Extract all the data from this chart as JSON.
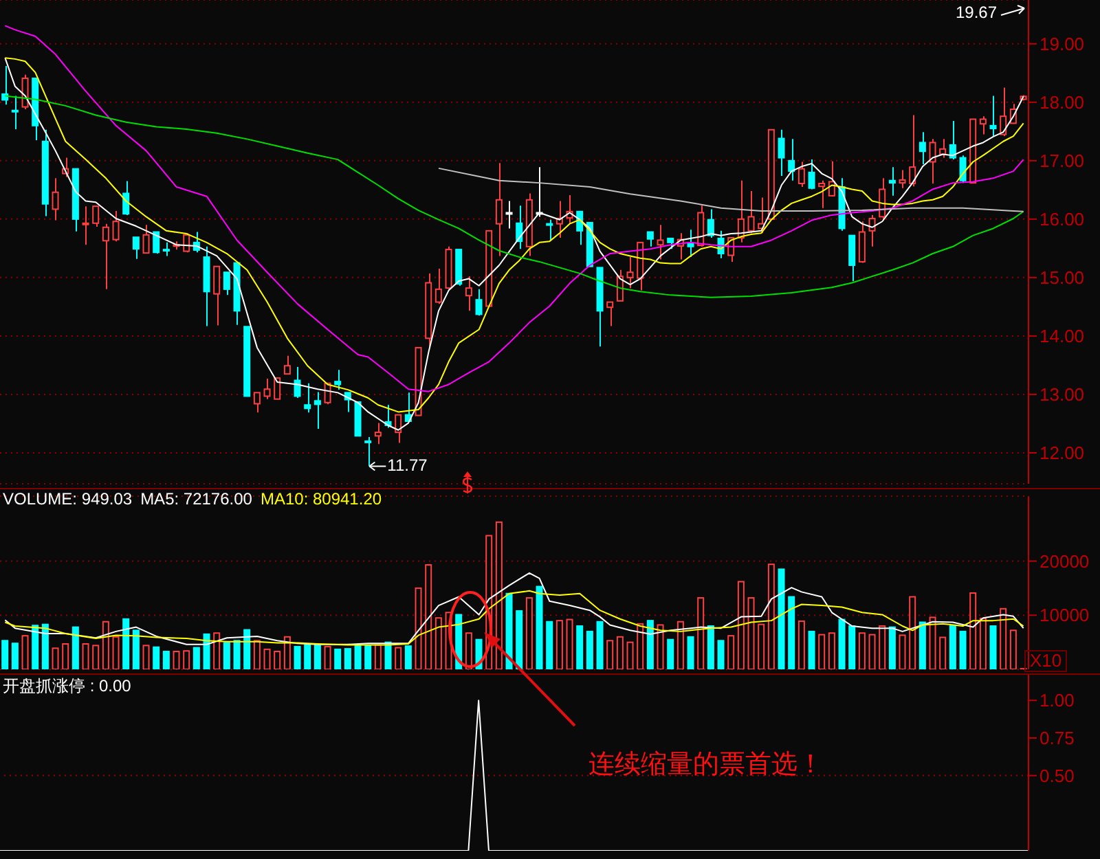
{
  "chart_data": [
    {
      "type": "candlestick",
      "categories": [
        null,
        null,
        null,
        null,
        null,
        null,
        null,
        null,
        null,
        null,
        null,
        null,
        null,
        null,
        null,
        null,
        null,
        null,
        null,
        null,
        null,
        null,
        null,
        null,
        null,
        null,
        null,
        null,
        null,
        null,
        null,
        null,
        null,
        null,
        null,
        null,
        null,
        null,
        null,
        null,
        null,
        null,
        null,
        null,
        null,
        null,
        null,
        null,
        null,
        null,
        null,
        null,
        null,
        null,
        null,
        null,
        null,
        null,
        null,
        null,
        null,
        null,
        null,
        null,
        null,
        null,
        null,
        null,
        null,
        null,
        null,
        null,
        null,
        null,
        null,
        null,
        null,
        null,
        null,
        null,
        null,
        null,
        null,
        null,
        null,
        null,
        null,
        null,
        null,
        null,
        null,
        null,
        null,
        null,
        null,
        null,
        null,
        null,
        null,
        null,
        null,
        null
      ],
      "ohlc": [
        [
          18.14,
          18.62,
          17.96,
          18.04
        ],
        [
          17.86,
          18.11,
          17.54,
          17.85
        ],
        [
          17.92,
          18.47,
          17.88,
          18.41
        ],
        [
          18.41,
          18.41,
          17.35,
          17.6
        ],
        [
          17.33,
          17.53,
          16.05,
          16.26
        ],
        [
          16.17,
          16.7,
          15.98,
          16.46
        ],
        [
          16.78,
          17.05,
          16.72,
          16.86
        ],
        [
          16.86,
          16.86,
          15.79,
          16.0
        ],
        [
          15.91,
          16.22,
          15.56,
          15.93
        ],
        [
          15.93,
          16.22,
          15.87,
          16.22
        ],
        [
          15.63,
          15.92,
          14.8,
          15.86
        ],
        [
          15.65,
          16.14,
          15.62,
          15.96
        ],
        [
          16.44,
          16.65,
          16.07,
          16.09
        ],
        [
          15.69,
          15.69,
          15.32,
          15.49
        ],
        [
          15.42,
          15.9,
          15.42,
          15.73
        ],
        [
          15.78,
          15.78,
          15.41,
          15.43
        ],
        [
          15.48,
          15.6,
          15.37,
          15.47
        ],
        [
          15.55,
          15.62,
          15.48,
          15.56
        ],
        [
          15.45,
          15.76,
          15.43,
          15.73
        ],
        [
          15.6,
          15.78,
          15.43,
          15.47
        ],
        [
          15.35,
          15.53,
          14.17,
          14.76
        ],
        [
          14.72,
          15.19,
          14.18,
          15.19
        ],
        [
          15.09,
          15.09,
          14.7,
          14.8
        ],
        [
          15.25,
          15.25,
          14.19,
          14.43
        ],
        [
          14.16,
          14.16,
          12.97,
          12.97
        ],
        [
          12.84,
          13.03,
          12.69,
          13.03
        ],
        [
          12.97,
          13.27,
          12.92,
          13.09
        ],
        [
          12.92,
          13.28,
          12.92,
          13.28
        ],
        [
          13.35,
          13.66,
          13.35,
          13.49
        ],
        [
          13.24,
          13.47,
          12.94,
          12.97
        ],
        [
          12.82,
          13.19,
          12.69,
          12.76
        ],
        [
          12.89,
          13.04,
          12.41,
          12.83
        ],
        [
          12.86,
          13.19,
          12.83,
          13.19
        ],
        [
          13.22,
          13.42,
          13.08,
          13.17
        ],
        [
          13.03,
          13.03,
          12.7,
          12.91
        ],
        [
          12.87,
          12.87,
          12.29,
          12.29
        ],
        [
          12.2,
          12.27,
          11.77,
          12.19
        ],
        [
          12.29,
          12.51,
          12.15,
          12.35
        ],
        [
          12.53,
          12.82,
          12.43,
          12.47
        ],
        [
          12.35,
          12.65,
          12.17,
          12.65
        ],
        [
          12.65,
          13.03,
          12.54,
          12.54
        ],
        [
          12.64,
          13.8,
          12.64,
          13.8
        ],
        [
          13.96,
          15.07,
          13.82,
          14.91
        ],
        [
          14.58,
          15.15,
          14.55,
          14.8
        ],
        [
          14.82,
          15.53,
          14.8,
          15.48
        ],
        [
          15.48,
          15.48,
          14.86,
          14.89
        ],
        [
          14.69,
          15.02,
          14.43,
          14.82
        ],
        [
          14.62,
          14.8,
          14.35,
          14.37
        ],
        [
          14.51,
          15.8,
          14.51,
          15.8
        ],
        [
          15.92,
          16.96,
          15.37,
          16.33
        ],
        [
          16.11,
          16.31,
          15.84,
          16.11
        ],
        [
          15.93,
          16.23,
          15.49,
          15.62
        ],
        [
          15.53,
          16.44,
          15.37,
          16.33
        ],
        [
          16.11,
          16.89,
          16.04,
          16.11
        ],
        [
          15.92,
          15.99,
          15.63,
          15.91
        ],
        [
          15.92,
          16.31,
          15.68,
          16.01
        ],
        [
          16.02,
          16.41,
          15.92,
          16.13
        ],
        [
          16.13,
          16.13,
          15.56,
          15.8
        ],
        [
          15.94,
          15.94,
          15.19,
          15.19
        ],
        [
          15.17,
          15.17,
          13.82,
          14.43
        ],
        [
          14.49,
          14.58,
          14.17,
          14.58
        ],
        [
          14.6,
          15.13,
          14.6,
          15.02
        ],
        [
          15.0,
          15.35,
          14.82,
          15.09
        ],
        [
          14.99,
          15.6,
          14.78,
          15.6
        ],
        [
          15.78,
          15.78,
          15.53,
          15.66
        ],
        [
          15.56,
          15.9,
          15.31,
          15.64
        ],
        [
          15.67,
          15.67,
          15.49,
          15.6
        ],
        [
          15.54,
          15.76,
          15.31,
          15.65
        ],
        [
          15.59,
          15.82,
          15.35,
          15.53
        ],
        [
          15.55,
          16.23,
          15.53,
          16.11
        ],
        [
          15.99,
          16.17,
          15.68,
          15.72
        ],
        [
          15.67,
          15.8,
          15.33,
          15.41
        ],
        [
          15.38,
          15.68,
          15.27,
          15.68
        ],
        [
          15.68,
          16.66,
          15.6,
          16.0
        ],
        [
          15.8,
          16.48,
          15.76,
          16.04
        ],
        [
          15.84,
          16.37,
          15.76,
          15.92
        ],
        [
          16.0,
          17.53,
          16.0,
          17.53
        ],
        [
          17.38,
          17.53,
          16.74,
          17.05
        ],
        [
          17.0,
          17.37,
          16.66,
          16.82
        ],
        [
          16.61,
          16.98,
          16.55,
          16.86
        ],
        [
          16.8,
          17.02,
          16.51,
          16.53
        ],
        [
          16.56,
          16.66,
          16.19,
          16.61
        ],
        [
          16.4,
          16.99,
          16.39,
          16.64
        ],
        [
          16.55,
          16.7,
          15.8,
          15.84
        ],
        [
          15.72,
          15.72,
          14.94,
          15.21
        ],
        [
          15.27,
          15.96,
          15.25,
          15.78
        ],
        [
          15.8,
          16.07,
          15.53,
          16.01
        ],
        [
          16.04,
          16.7,
          15.98,
          16.51
        ],
        [
          16.66,
          16.89,
          16.4,
          16.62
        ],
        [
          16.62,
          16.84,
          16.53,
          16.67
        ],
        [
          16.61,
          17.78,
          16.56,
          16.89
        ],
        [
          17.31,
          17.49,
          16.94,
          17.16
        ],
        [
          16.98,
          17.37,
          16.61,
          17.31
        ],
        [
          17.11,
          17.37,
          17.05,
          17.2
        ],
        [
          17.27,
          17.68,
          17.02,
          17.05
        ],
        [
          17.05,
          17.09,
          16.62,
          16.66
        ],
        [
          16.62,
          17.71,
          16.62,
          17.71
        ],
        [
          17.63,
          17.76,
          17.45,
          17.71
        ],
        [
          17.6,
          18.11,
          17.41,
          17.55
        ],
        [
          17.45,
          18.25,
          17.42,
          17.76
        ],
        [
          17.64,
          17.97,
          17.63,
          17.88
        ],
        [
          18.05,
          18.12,
          18.03,
          18.1
        ]
      ],
      "colors": [
        "#00ffff",
        "#00ffff",
        "#ff4040",
        "#00ffff",
        "#00ffff",
        "#ff4040",
        "#ff4040",
        "#00ffff",
        "#ff4040",
        "#ff4040",
        "#ff4040",
        "#ff4040",
        "#00ffff",
        "#00ffff",
        "#ff4040",
        "#00ffff",
        "#00ffff",
        "#ff4040",
        "#ff4040",
        "#00ffff",
        "#00ffff",
        "#ff4040",
        "#00ffff",
        "#00ffff",
        "#00ffff",
        "#ff4040",
        "#ff4040",
        "#ff4040",
        "#ff4040",
        "#00ffff",
        "#00ffff",
        "#00ffff",
        "#ff4040",
        "#00ffff",
        "#00ffff",
        "#00ffff",
        "#00ffff",
        "#ff4040",
        "#00ffff",
        "#ff4040",
        "#00ffff",
        "#ff4040",
        "#ff4040",
        "#ff4040",
        "#ff4040",
        "#00ffff",
        "#ff4040",
        "#00ffff",
        "#ff4040",
        "#ff4040",
        "#ffffff",
        "#00ffff",
        "#ff4040",
        "#ffffff",
        "#00ffff",
        "#ff4040",
        "#ff4040",
        "#00ffff",
        "#00ffff",
        "#00ffff",
        "#ff4040",
        "#ff4040",
        "#ff4040",
        "#ff4040",
        "#00ffff",
        "#ff4040",
        "#00ffff",
        "#ff4040",
        "#00ffff",
        "#ff4040",
        "#00ffff",
        "#00ffff",
        "#ff4040",
        "#ff4040",
        "#ff4040",
        "#ff4040",
        "#ff4040",
        "#00ffff",
        "#00ffff",
        "#ff4040",
        "#00ffff",
        "#ff4040",
        "#ff4040",
        "#00ffff",
        "#00ffff",
        "#ff4040",
        "#ff4040",
        "#ff4040",
        "#00ffff",
        "#ff4040",
        "#ff4040",
        "#00ffff",
        "#ff4040",
        "#ff4040",
        "#00ffff",
        "#00ffff",
        "#ff4040",
        "#ff4040",
        "#00ffff",
        "#ff4040",
        "#ff4040",
        "#ff4040"
      ],
      "series": [
        {
          "type": "line",
          "color": "#ffffff",
          "values": [
            18.76,
            18.27,
            18.11,
            null,
            17.49,
            17.17,
            null,
            16.47,
            16.31,
            16.29,
            null,
            16.01,
            null,
            15.88,
            null,
            15.72,
            null,
            15.56,
            null,
            15.54,
            null,
            15.37,
            null,
            14.98,
            null,
            13.8,
            null,
            13.21,
            null,
            13.17,
            null,
            13.09,
            null,
            13.03,
            null,
            12.86,
            12.7,
            null,
            12.47,
            12.39,
            12.51,
            12.86,
            13.72,
            14.43,
            14.78,
            14.94,
            14.98,
            14.86,
            null,
            15.21,
            null,
            15.68,
            null,
            16.11,
            null,
            15.99,
            16.11,
            15.99,
            15.84,
            15.45,
            null,
            14.98,
            14.88,
            14.98,
            null,
            15.37,
            null,
            15.64,
            null,
            15.7,
            15.75,
            15.72,
            15.75,
            15.76,
            null,
            15.8,
            16.15,
            16.58,
            16.82,
            16.9,
            16.95,
            16.78,
            16.69,
            16.47,
            16.04,
            15.92,
            15.86,
            15.96,
            16.19,
            16.39,
            16.62,
            16.9,
            17.05,
            17.11,
            17.09,
            17.17,
            17.25,
            17.31,
            17.41,
            17.49,
            17.76,
            18.1
          ]
        },
        {
          "type": "line",
          "color": "#ffff00",
          "values": [
            18.76,
            18.74,
            18.7,
            18.51,
            null,
            17.72,
            17.33,
            null,
            17.02,
            null,
            16.7,
            null,
            16.31,
            null,
            16.04,
            null,
            15.8,
            null,
            15.75,
            null,
            15.6,
            null,
            15.41,
            null,
            15.13,
            null,
            14.58,
            null,
            13.96,
            null,
            13.49,
            null,
            13.17,
            null,
            13.08,
            null,
            12.94,
            12.82,
            null,
            12.7,
            null,
            12.74,
            12.94,
            13.17,
            13.56,
            13.88,
            null,
            14.11,
            14.51,
            14.9,
            15.13,
            15.29,
            15.49,
            15.6,
            15.62,
            15.76,
            15.92,
            15.99,
            15.8,
            15.6,
            15.49,
            15.41,
            15.37,
            15.33,
            15.31,
            15.25,
            15.24,
            15.24,
            15.37,
            15.49,
            15.53,
            15.49,
            15.64,
            15.7,
            15.74,
            15.76,
            15.99,
            16.15,
            16.27,
            16.33,
            16.39,
            16.47,
            16.58,
            16.55,
            16.51,
            16.48,
            16.31,
            16.27,
            16.25,
            16.25,
            16.27,
            16.31,
            16.33,
            16.39,
            16.55,
            16.78,
            16.98,
            17.09,
            17.21,
            17.33,
            17.42,
            17.64
          ]
        },
        {
          "type": "line",
          "color": "#ff00ff",
          "values": [
            19.31,
            19.24,
            null,
            19.13,
            null,
            18.82,
            null,
            null,
            18.19,
            null,
            null,
            17.6,
            null,
            null,
            17.17,
            null,
            null,
            16.55,
            null,
            null,
            16.39,
            null,
            null,
            15.64,
            null,
            null,
            15.09,
            null,
            null,
            14.55,
            null,
            null,
            14.11,
            null,
            null,
            13.68,
            13.64,
            null,
            13.37,
            null,
            13.09,
            null,
            13.05,
            null,
            13.17,
            null,
            13.37,
            null,
            13.56,
            null,
            13.88,
            null,
            14.23,
            null,
            14.51,
            null,
            14.9,
            null,
            15.21,
            null,
            15.41,
            null,
            15.45,
            null,
            15.49,
            null,
            15.56,
            null,
            15.6,
            null,
            15.56,
            null,
            15.53,
            null,
            15.53,
            null,
            15.64,
            null,
            15.8,
            null,
            15.98,
            null,
            16.07,
            null,
            16.11,
            null,
            16.14,
            null,
            16.19,
            null,
            16.31,
            null,
            16.51,
            null,
            16.62,
            null,
            16.64,
            null,
            16.7,
            null,
            16.82,
            17.02
          ]
        },
        {
          "type": "line",
          "color": "#00e000",
          "values": [
            18.11,
            18.09,
            null,
            18.05,
            null,
            null,
            17.94,
            null,
            null,
            17.78,
            null,
            null,
            17.66,
            null,
            null,
            17.58,
            null,
            null,
            17.54,
            null,
            null,
            17.47,
            null,
            null,
            17.37,
            null,
            null,
            17.25,
            null,
            null,
            17.13,
            null,
            null,
            17.02,
            null,
            16.8,
            null,
            16.58,
            null,
            16.35,
            null,
            16.15,
            null,
            15.99,
            null,
            15.84,
            null,
            15.64,
            null,
            15.46,
            null,
            15.35,
            null,
            15.27,
            null,
            15.17,
            null,
            15.07,
            null,
            14.94,
            null,
            14.82,
            null,
            14.76,
            null,
            null,
            14.7,
            null,
            null,
            null,
            14.66,
            null,
            null,
            null,
            14.68,
            null,
            null,
            null,
            14.74,
            null,
            null,
            null,
            14.83,
            null,
            14.91,
            null,
            15.02,
            null,
            15.13,
            null,
            15.25,
            null,
            15.41,
            null,
            15.53,
            null,
            15.72,
            null,
            15.84,
            null,
            16.01,
            16.13
          ]
        },
        {
          "type": "line",
          "color": "#c0c0c0",
          "values": [
            null,
            null,
            null,
            null,
            null,
            null,
            null,
            null,
            null,
            null,
            null,
            null,
            null,
            null,
            null,
            null,
            null,
            null,
            null,
            null,
            null,
            null,
            null,
            null,
            null,
            null,
            null,
            null,
            null,
            null,
            null,
            null,
            null,
            null,
            null,
            null,
            null,
            null,
            null,
            null,
            null,
            null,
            null,
            16.87,
            null,
            null,
            null,
            null,
            null,
            16.66,
            null,
            null,
            null,
            16.62,
            null,
            null,
            null,
            null,
            16.55,
            null,
            null,
            null,
            16.43,
            null,
            null,
            null,
            null,
            16.31,
            null,
            null,
            null,
            16.19,
            null,
            null,
            null,
            16.14,
            null,
            null,
            null,
            null,
            16.14,
            null,
            null,
            null,
            null,
            16.15,
            null,
            null,
            null,
            null,
            16.19,
            null,
            null,
            null,
            null,
            16.19,
            null,
            null,
            null,
            null,
            16.14,
            16.13
          ]
        }
      ],
      "ylim": [
        11.47,
        19.75
      ],
      "yticks": [
        {
          "value": 12,
          "label": "12.00"
        },
        {
          "value": 13,
          "label": "13.00"
        },
        {
          "value": 14,
          "label": "14.00"
        },
        {
          "value": 15,
          "label": "15.00"
        },
        {
          "value": 16,
          "label": "16.00"
        },
        {
          "value": 17,
          "label": "17.00"
        },
        {
          "value": 18,
          "label": "18.00"
        },
        {
          "value": 19,
          "label": "19.00"
        }
      ],
      "grid": "y",
      "tick_labels": "y",
      "annotations": [
        "19.67",
        "11.77"
      ]
    },
    {
      "type": "bar",
      "title": "VOLUME: 949.03",
      "legend": "top left",
      "categories": [
        null,
        null,
        null,
        null,
        null,
        null,
        null,
        null,
        null,
        null,
        null,
        null,
        null,
        null,
        null,
        null,
        null,
        null,
        null,
        null,
        null,
        null,
        null,
        null,
        null,
        null,
        null,
        null,
        null,
        null,
        null,
        null,
        null,
        null,
        null,
        null,
        null,
        null,
        null,
        null,
        null,
        null,
        null,
        null,
        null,
        null,
        null,
        null,
        null,
        null,
        null,
        null,
        null,
        null,
        null,
        null,
        null,
        null,
        null,
        null,
        null,
        null,
        null,
        null,
        null,
        null,
        null,
        null,
        null,
        null,
        null,
        null,
        null,
        null,
        null,
        null,
        null,
        null,
        null,
        null,
        null,
        null,
        null,
        null,
        null,
        null,
        null,
        null,
        null,
        null,
        null,
        null,
        null,
        null,
        null,
        null,
        null,
        null,
        null,
        null,
        null,
        null
      ],
      "values": [
        5300,
        4800,
        6200,
        8100,
        8300,
        3900,
        4700,
        7800,
        4700,
        4400,
        8800,
        6000,
        9300,
        7200,
        4400,
        4100,
        3300,
        3300,
        3400,
        4000,
        6500,
        6700,
        4900,
        5300,
        7300,
        5300,
        3700,
        3300,
        6000,
        4200,
        4500,
        4500,
        4200,
        3700,
        3800,
        4500,
        4400,
        4500,
        5000,
        4000,
        4300,
        15000,
        19300,
        9500,
        10500,
        10100,
        6700,
        5500,
        24700,
        27200,
        14000,
        10800,
        13200,
        15300,
        8800,
        9000,
        9200,
        8000,
        7000,
        8800,
        5300,
        6000,
        5000,
        8400,
        9000,
        8200,
        5500,
        8800,
        6000,
        13200,
        8000,
        5300,
        6200,
        16200,
        13200,
        8300,
        19400,
        18500,
        13400,
        8900,
        7000,
        6400,
        6700,
        9200,
        8000,
        6700,
        6400,
        8000,
        7800,
        6300,
        13400,
        8700,
        9600,
        5900,
        8000,
        7000,
        14100,
        9400,
        8000,
        11200,
        7200,
        100
      ],
      "colors": [
        "#00ffff",
        "#00ffff",
        "#ff4040",
        "#00ffff",
        "#00ffff",
        "#ff4040",
        "#ff4040",
        "#00ffff",
        "#ff4040",
        "#ff4040",
        "#ff4040",
        "#ff4040",
        "#00ffff",
        "#00ffff",
        "#ff4040",
        "#00ffff",
        "#00ffff",
        "#ff4040",
        "#ff4040",
        "#00ffff",
        "#00ffff",
        "#ff4040",
        "#00ffff",
        "#00ffff",
        "#00ffff",
        "#ff4040",
        "#ff4040",
        "#ff4040",
        "#ff4040",
        "#00ffff",
        "#00ffff",
        "#00ffff",
        "#ff4040",
        "#00ffff",
        "#00ffff",
        "#00ffff",
        "#00ffff",
        "#ff4040",
        "#00ffff",
        "#ff4040",
        "#00ffff",
        "#ff4040",
        "#ff4040",
        "#ff4040",
        "#ff4040",
        "#00ffff",
        "#ff4040",
        "#00ffff",
        "#ff4040",
        "#ff4040",
        "#00ffff",
        "#00ffff",
        "#ff4040",
        "#00ffff",
        "#00ffff",
        "#ff4040",
        "#ff4040",
        "#00ffff",
        "#00ffff",
        "#00ffff",
        "#ff4040",
        "#ff4040",
        "#ff4040",
        "#ff4040",
        "#00ffff",
        "#ff4040",
        "#00ffff",
        "#ff4040",
        "#00ffff",
        "#ff4040",
        "#00ffff",
        "#00ffff",
        "#ff4040",
        "#ff4040",
        "#ff4040",
        "#ff4040",
        "#ff4040",
        "#00ffff",
        "#00ffff",
        "#ff4040",
        "#00ffff",
        "#ff4040",
        "#ff4040",
        "#00ffff",
        "#00ffff",
        "#ff4040",
        "#ff4040",
        "#ff4040",
        "#00ffff",
        "#ff4040",
        "#ff4040",
        "#00ffff",
        "#ff4040",
        "#ff4040",
        "#00ffff",
        "#00ffff",
        "#ff4040",
        "#ff4040",
        "#00ffff",
        "#ff4040",
        "#ff4040",
        "#ff4040"
      ],
      "series": [
        {
          "type": "line",
          "name": "MA5: 72176.00",
          "color": "#ffffff",
          "values": [
            9100,
            7600,
            null,
            null,
            6600,
            null,
            6600,
            null,
            null,
            5800,
            null,
            7000,
            null,
            7800,
            null,
            6100,
            null,
            null,
            4600,
            null,
            4600,
            null,
            5800,
            null,
            null,
            6100,
            null,
            5300,
            null,
            4800,
            null,
            4600,
            null,
            null,
            4600,
            null,
            4800,
            null,
            4800,
            null,
            4800,
            7200,
            null,
            11800,
            null,
            13400,
            null,
            10100,
            13000,
            null,
            15500,
            null,
            17800,
            16800,
            12600,
            null,
            11800,
            null,
            10900,
            9700,
            8200,
            null,
            7200,
            null,
            6500,
            null,
            7200,
            null,
            7600,
            7800,
            null,
            7600,
            null,
            9700,
            null,
            9800,
            13000,
            null,
            15100,
            14300,
            null,
            13400,
            10500,
            null,
            8000,
            null,
            7600,
            null,
            7600,
            7000,
            null,
            8200,
            8800,
            null,
            8700,
            null,
            7800,
            9500,
            null,
            10100,
            9800,
            7600
          ]
        },
        {
          "type": "line",
          "name": "MA10: 80941.20",
          "color": "#ffff00",
          "values": [
            8700,
            8000,
            null,
            null,
            7600,
            null,
            6600,
            null,
            null,
            5700,
            null,
            6300,
            null,
            6200,
            null,
            5900,
            null,
            null,
            5700,
            null,
            5300,
            null,
            5100,
            null,
            null,
            5100,
            null,
            4900,
            null,
            4900,
            null,
            4700,
            null,
            null,
            4500,
            null,
            4500,
            null,
            4500,
            null,
            4700,
            6300,
            null,
            7800,
            null,
            8300,
            null,
            9300,
            11200,
            null,
            14000,
            null,
            14500,
            14000,
            null,
            13700,
            null,
            14000,
            null,
            10900,
            null,
            9300,
            null,
            8000,
            null,
            7200,
            null,
            7000,
            7200,
            null,
            7600,
            null,
            7800,
            null,
            8700,
            null,
            9000,
            null,
            11200,
            12000,
            null,
            11800,
            null,
            11500,
            null,
            10500,
            null,
            10100,
            null,
            8000,
            7200,
            8200,
            null,
            8400,
            null,
            8000,
            9000,
            null,
            9000,
            null,
            9300,
            8000
          ]
        }
      ],
      "ylim": [
        0,
        32000
      ],
      "yticks": [
        10000,
        20000
      ],
      "grid": "y",
      "tick_labels": "y",
      "annotations": [
        "X10"
      ]
    },
    {
      "type": "line",
      "title": "开盘抓涨停 : 0.00",
      "categories": [
        null,
        null,
        null,
        null,
        null,
        null,
        null,
        null,
        null,
        null,
        null,
        null,
        null,
        null,
        null,
        null,
        null,
        null,
        null,
        null,
        null,
        null,
        null,
        null,
        null,
        null,
        null,
        null,
        null,
        null,
        null,
        null,
        null,
        null,
        null,
        null,
        null,
        null,
        null,
        null,
        null,
        null,
        null,
        null,
        null,
        null,
        null,
        null,
        null,
        null,
        null,
        null,
        null,
        null,
        null,
        null,
        null,
        null,
        null,
        null,
        null,
        null,
        null,
        null,
        null,
        null,
        null,
        null,
        null,
        null,
        null,
        null,
        null,
        null,
        null,
        null,
        null,
        null,
        null,
        null,
        null,
        null,
        null,
        null,
        null,
        null,
        null,
        null,
        null,
        null,
        null,
        null,
        null,
        null,
        null,
        null,
        null,
        null,
        null,
        null,
        null,
        null
      ],
      "series": [
        {
          "color": "#ffffff",
          "values": [
            0,
            0,
            0,
            0,
            0,
            0,
            0,
            0,
            0,
            0,
            0,
            0,
            0,
            0,
            0,
            0,
            0,
            0,
            0,
            0,
            0,
            0,
            0,
            0,
            0,
            0,
            0,
            0,
            0,
            0,
            0,
            0,
            0,
            0,
            0,
            0,
            0,
            0,
            0,
            0,
            0,
            0,
            0,
            0,
            0,
            0,
            0,
            1,
            0,
            0,
            0,
            0,
            0,
            0,
            0,
            0,
            0,
            0,
            0,
            0,
            0,
            0,
            0,
            0,
            0,
            0,
            0,
            0,
            0,
            0,
            0,
            0,
            0,
            0,
            0,
            0,
            0,
            0,
            0,
            0,
            0,
            0,
            0,
            0,
            0,
            0,
            0,
            0,
            0,
            0,
            0,
            0,
            0,
            0,
            0,
            0,
            0,
            0,
            0,
            0,
            0,
            0
          ]
        }
      ],
      "ylim": [
        0,
        1.17
      ],
      "yticks": [
        {
          "value": 0.5,
          "label": "0.50"
        },
        {
          "value": 0.75,
          "label": "0.75"
        },
        {
          "value": 1,
          "label": "1.00"
        }
      ],
      "tick_labels": "y",
      "ref_lines": [
        {
          "axis": "y",
          "value": 0.5,
          "color": "#a00000",
          "line_style": "dotted"
        }
      ],
      "annotations": [
        "连续缩量的票首选！"
      ]
    }
  ]
}
